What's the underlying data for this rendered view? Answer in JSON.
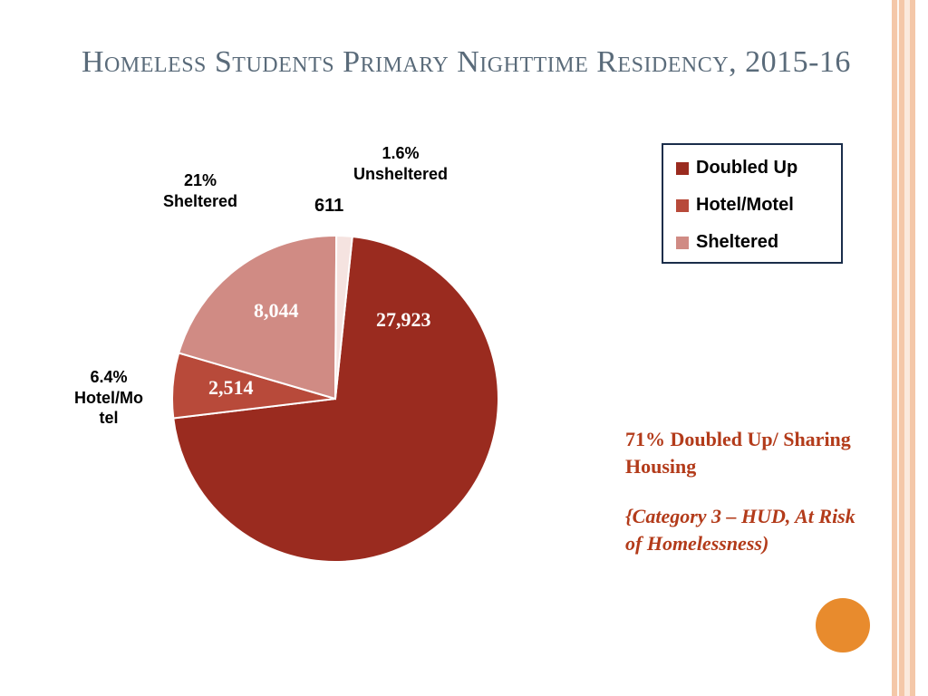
{
  "title": "Homeless Students Primary Nighttime Residency, 2015-16",
  "chart": {
    "type": "pie",
    "background_color": "#ffffff",
    "stroke_color": "#ffffff",
    "stroke_width": 2,
    "radius": 180,
    "slices": [
      {
        "name": "Doubled Up",
        "value": 27923,
        "percent": 71.0,
        "color": "#9a2b1f",
        "value_label": "27,923"
      },
      {
        "name": "Hotel/Motel",
        "value": 2514,
        "percent": 6.4,
        "color": "#b84a3a",
        "value_label": "2,514"
      },
      {
        "name": "Sheltered",
        "value": 8044,
        "percent": 21.0,
        "color": "#d08b84",
        "value_label": "8,044"
      },
      {
        "name": "Unsheltered",
        "value": 611,
        "percent": 1.6,
        "color": "#f5e3e0",
        "value_label": "611"
      }
    ],
    "external_labels": {
      "unsheltered": {
        "line1": "1.6%",
        "line2": "Unsheltered",
        "fontsize": 18
      },
      "sheltered": {
        "line1": "21%",
        "line2": "Sheltered",
        "fontsize": 18
      },
      "hotel": {
        "line1": "6.4%",
        "line2": "Hotel/Mo",
        "line3": "tel",
        "fontsize": 18
      },
      "unsheltered_count": "611"
    },
    "slice_value_fontsize": 22,
    "slice_value_color": "#ffffff"
  },
  "legend": {
    "border_color": "#1a2d4a",
    "fontsize": 20,
    "items": [
      {
        "label": "Doubled Up",
        "color": "#9a2b1f"
      },
      {
        "label": "Hotel/Motel",
        "color": "#b84a3a"
      },
      {
        "label": "Sheltered",
        "color": "#d08b84"
      }
    ]
  },
  "callout": {
    "main": "71% Doubled Up/ Sharing Housing",
    "sub": "{Category 3 – HUD, At Risk of Homelessness)",
    "color": "#b33b1a",
    "fontsize": 22
  },
  "accent": {
    "stripe_colors": [
      "#f4c7a8",
      "#fbe9dc",
      "#f4c7a8",
      "#fdf6f0",
      "#f4c7a8"
    ],
    "dot_color": "#e88b2d"
  },
  "title_style": {
    "color": "#5a6b7a",
    "fontsize": 34
  }
}
